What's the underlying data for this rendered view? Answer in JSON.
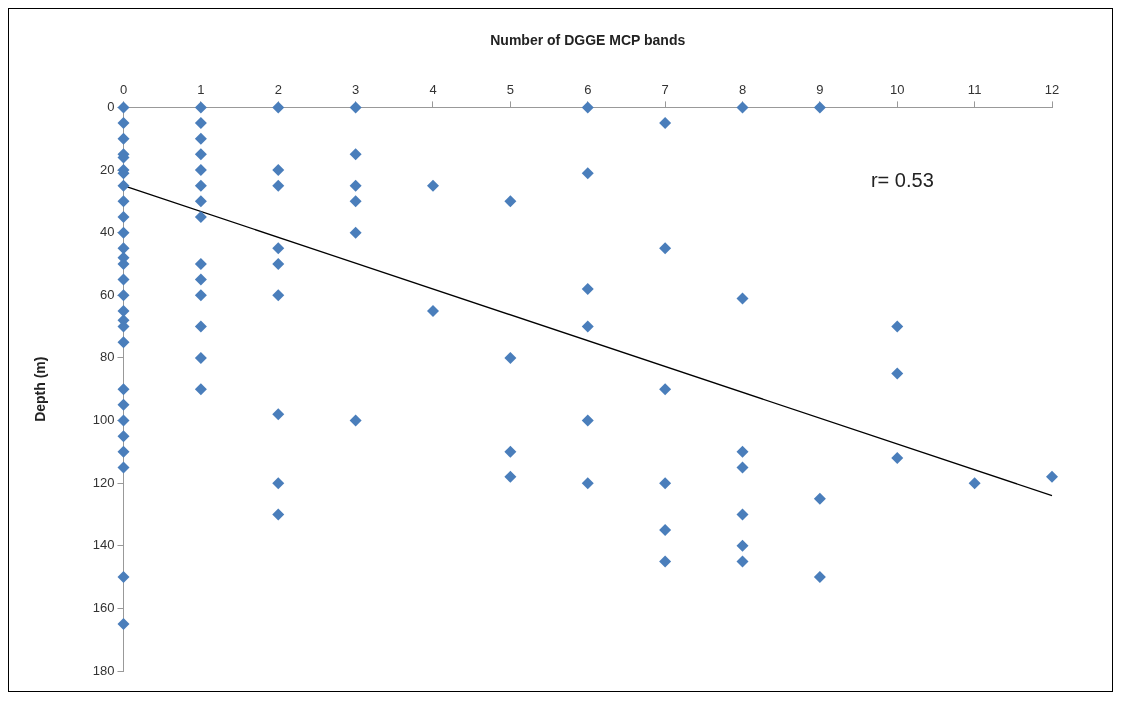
{
  "chart_data": {
    "type": "scatter",
    "xlabel": "Number of DGGE MCP bands",
    "ylabel": "Depth (m)",
    "xlim": [
      0,
      12
    ],
    "xticks": [
      0,
      1,
      2,
      3,
      4,
      5,
      6,
      7,
      8,
      9,
      10,
      11,
      12
    ],
    "ylim": [
      180,
      0
    ],
    "yticks": [
      0,
      20,
      40,
      60,
      80,
      100,
      120,
      140,
      160,
      180
    ],
    "grid": false,
    "legend": false,
    "marker": "diamond",
    "annotations": [
      "r= 0.53"
    ],
    "series": [
      {
        "color": "#4a7ebb",
        "x": [
          0,
          0,
          0,
          0,
          0,
          0,
          0,
          0,
          0,
          0,
          0,
          0,
          0,
          0,
          0,
          0,
          0,
          0,
          0,
          0,
          0,
          0,
          0,
          0,
          0,
          0,
          0,
          0,
          1,
          1,
          1,
          1,
          1,
          1,
          1,
          1,
          1,
          1,
          1,
          1,
          1,
          1,
          2,
          2,
          2,
          2,
          2,
          2,
          2,
          2,
          2,
          3,
          3,
          3,
          3,
          3,
          3,
          4,
          4,
          5,
          5,
          5,
          5,
          6,
          6,
          6,
          6,
          6,
          6,
          7,
          7,
          7,
          7,
          7,
          7,
          8,
          8,
          8,
          8,
          8,
          8,
          8,
          9,
          9,
          9,
          10,
          10,
          10,
          11,
          12
        ],
        "values": [
          0,
          5,
          10,
          15,
          16,
          20,
          21,
          25,
          30,
          35,
          40,
          45,
          48,
          50,
          55,
          60,
          65,
          68,
          70,
          75,
          90,
          95,
          100,
          105,
          110,
          115,
          150,
          165,
          0,
          5,
          10,
          15,
          20,
          25,
          30,
          35,
          50,
          55,
          60,
          70,
          80,
          90,
          0,
          20,
          25,
          45,
          50,
          60,
          98,
          120,
          130,
          0,
          15,
          25,
          30,
          40,
          100,
          25,
          65,
          30,
          80,
          110,
          118,
          0,
          21,
          58,
          70,
          100,
          120,
          5,
          45,
          90,
          120,
          135,
          145,
          0,
          61,
          110,
          115,
          130,
          140,
          145,
          0,
          125,
          150,
          70,
          85,
          112,
          120,
          118
        ]
      },
      {
        "type": "line",
        "color": "#000000",
        "marker": "none",
        "x": [
          0,
          12
        ],
        "values": [
          25,
          124
        ]
      }
    ]
  }
}
